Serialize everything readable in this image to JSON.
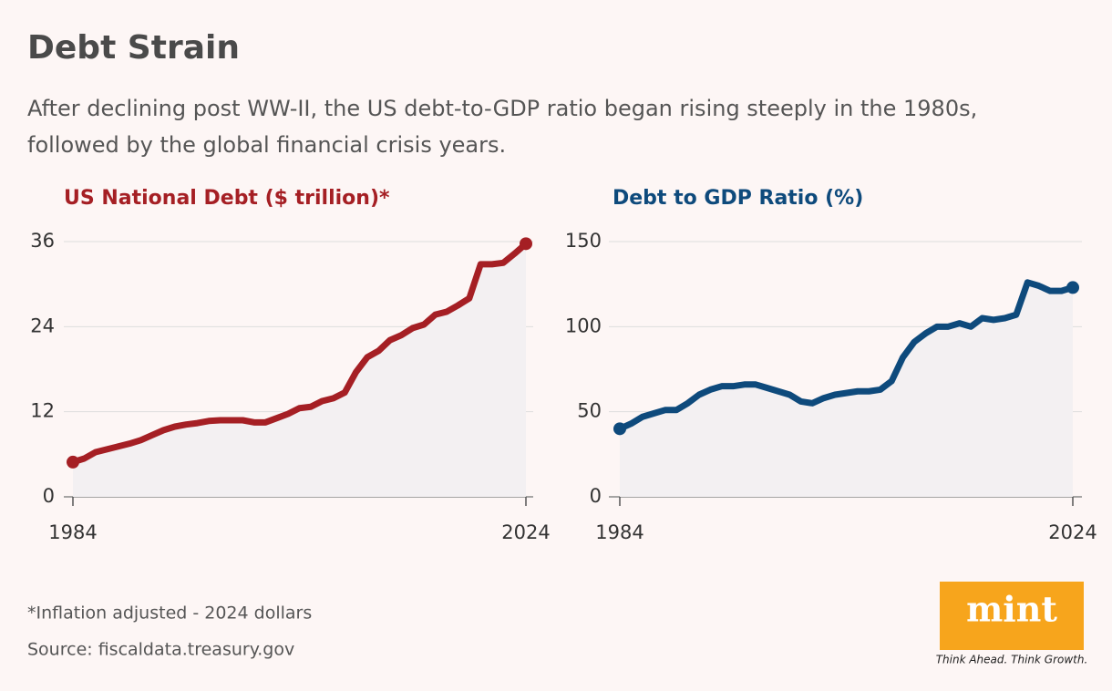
{
  "title": "Debt Strain",
  "subtitle": [
    "After declining post WW-II, the US debt-to-GDP ratio began rising steeply in the 1980s,",
    "followed by the global financial crisis years."
  ],
  "footnote": "*Inflation adjusted - 2024 dollars",
  "source": "Source: fiscaldata.treasury.gov",
  "logo": {
    "text": "mint",
    "tagline": "Think Ahead. Think Growth."
  },
  "chart_data": [
    {
      "type": "line",
      "title": "US National Debt ($ trillion)*",
      "color": "#a51f24",
      "x": [
        1984,
        1985,
        1986,
        1987,
        1988,
        1989,
        1990,
        1991,
        1992,
        1993,
        1994,
        1995,
        1996,
        1997,
        1998,
        1999,
        2000,
        2001,
        2002,
        2003,
        2004,
        2005,
        2006,
        2007,
        2008,
        2009,
        2010,
        2011,
        2012,
        2013,
        2014,
        2015,
        2016,
        2017,
        2018,
        2019,
        2020,
        2021,
        2022,
        2023,
        2024
      ],
      "values": [
        4.9,
        5.4,
        6.3,
        6.7,
        7.1,
        7.5,
        8.0,
        8.7,
        9.4,
        9.9,
        10.2,
        10.4,
        10.7,
        10.8,
        10.8,
        10.8,
        10.5,
        10.5,
        11.1,
        11.7,
        12.5,
        12.7,
        13.5,
        13.9,
        14.7,
        17.6,
        19.7,
        20.6,
        22.1,
        22.8,
        23.8,
        24.3,
        25.7,
        26.1,
        27.0,
        28.0,
        32.8,
        32.8,
        33.0,
        34.3,
        35.7
      ],
      "xlim": [
        1984,
        2024
      ],
      "xticks": [
        1984,
        2024
      ],
      "ylim": [
        0,
        36
      ],
      "yticks": [
        0,
        12,
        24,
        36
      ],
      "grid": true
    },
    {
      "type": "line",
      "title": "Debt to GDP Ratio (%)",
      "color": "#0e4a7c",
      "x": [
        1984,
        1985,
        1986,
        1987,
        1988,
        1989,
        1990,
        1991,
        1992,
        1993,
        1994,
        1995,
        1996,
        1997,
        1998,
        1999,
        2000,
        2001,
        2002,
        2003,
        2004,
        2005,
        2006,
        2007,
        2008,
        2009,
        2010,
        2011,
        2012,
        2013,
        2014,
        2015,
        2016,
        2017,
        2018,
        2019,
        2020,
        2021,
        2022,
        2023,
        2024
      ],
      "values": [
        40,
        43,
        47,
        49,
        51,
        51,
        55,
        60,
        63,
        65,
        65,
        66,
        66,
        64,
        62,
        60,
        56,
        55,
        58,
        60,
        61,
        62,
        62,
        63,
        68,
        82,
        91,
        96,
        100,
        100,
        102,
        100,
        105,
        104,
        105,
        107,
        126,
        124,
        121,
        121,
        123
      ],
      "xlim": [
        1984,
        2024
      ],
      "xticks": [
        1984,
        2024
      ],
      "ylim": [
        0,
        150
      ],
      "yticks": [
        0,
        50,
        100,
        150
      ],
      "grid": true
    }
  ]
}
